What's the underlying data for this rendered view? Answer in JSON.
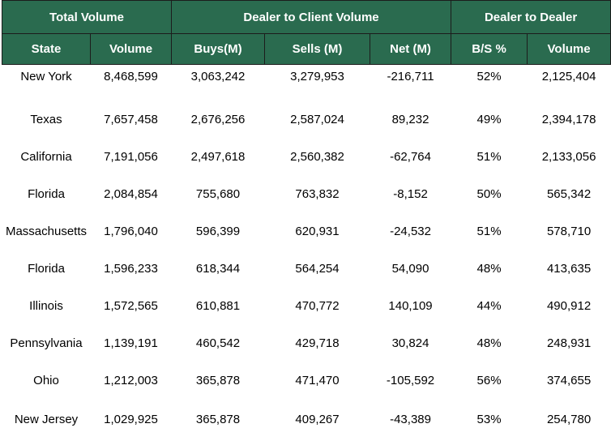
{
  "header_groups": {
    "total_volume": "Total Volume",
    "dealer_to_client": "Dealer to Client Volume",
    "dealer_to_dealer": "Dealer to Dealer"
  },
  "columns": [
    "State",
    "Volume",
    "Buys(M)",
    "Sells (M)",
    "Net (M)",
    "B/S %",
    "Volume"
  ],
  "rows": [
    [
      "New York",
      "8,468,599",
      "3,063,242",
      "3,279,953",
      "-216,711",
      "52%",
      "2,125,404"
    ],
    [
      "Texas",
      "7,657,458",
      "2,676,256",
      "2,587,024",
      "89,232",
      "49%",
      "2,394,178"
    ],
    [
      "California",
      "7,191,056",
      "2,497,618",
      "2,560,382",
      "-62,764",
      "51%",
      "2,133,056"
    ],
    [
      "Florida",
      "2,084,854",
      "755,680",
      "763,832",
      "-8,152",
      "50%",
      "565,342"
    ],
    [
      "Massachusetts",
      "1,796,040",
      "596,399",
      "620,931",
      "-24,532",
      "51%",
      "578,710"
    ],
    [
      "Florida",
      "1,596,233",
      "618,344",
      "564,254",
      "54,090",
      "48%",
      "413,635"
    ],
    [
      "Illinois",
      "1,572,565",
      "610,881",
      "470,772",
      "140,109",
      "44%",
      "490,912"
    ],
    [
      "Pennsylvania",
      "1,139,191",
      "460,542",
      "429,718",
      "30,824",
      "48%",
      "248,931"
    ],
    [
      "Ohio",
      "1,212,003",
      "365,878",
      "471,470",
      "-105,592",
      "56%",
      "374,655"
    ],
    [
      "New Jersey",
      "1,029,925",
      "365,878",
      "409,267",
      "-43,389",
      "53%",
      "254,780"
    ]
  ],
  "colors": {
    "header_bg": "#2a6b4f",
    "header_text": "#ffffff",
    "border": "#1c1c1c"
  }
}
